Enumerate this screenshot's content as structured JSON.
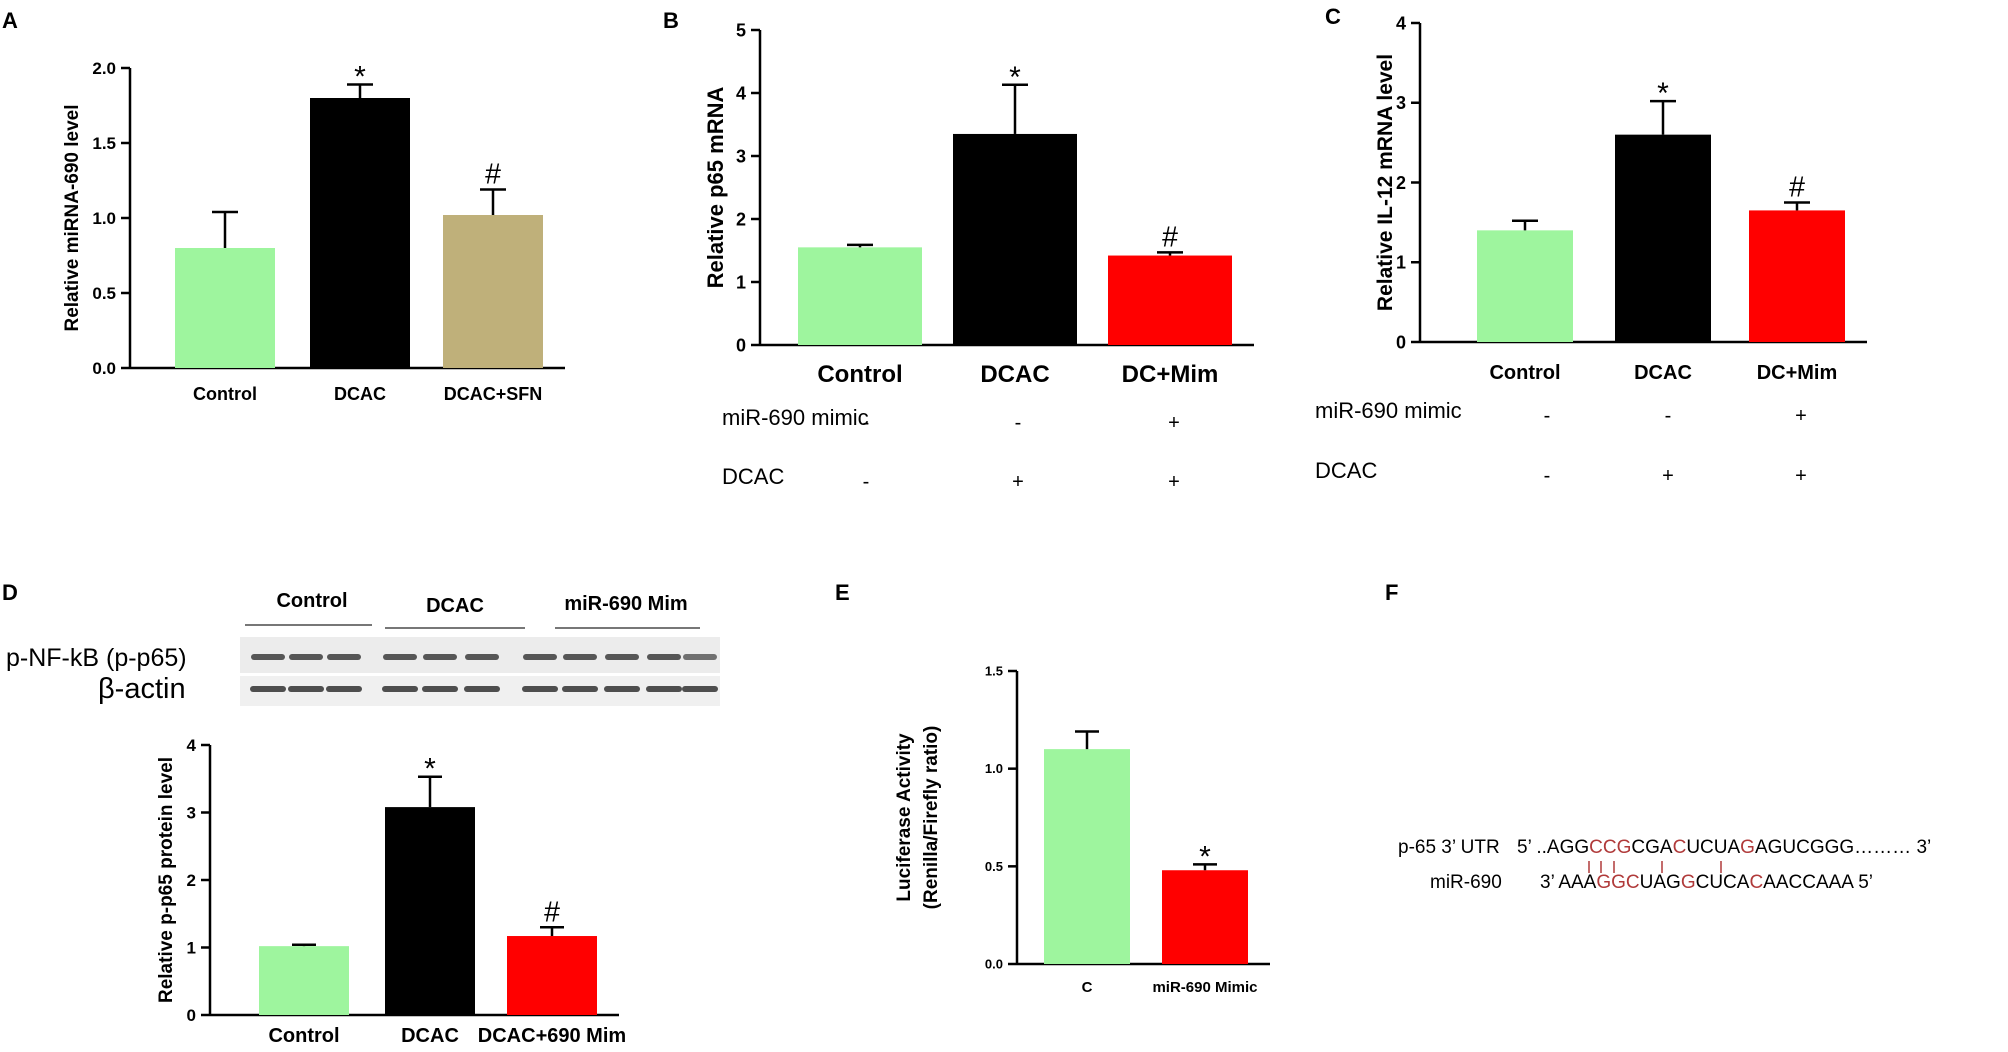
{
  "colors": {
    "control": "#9ef59e",
    "dcac": "#000000",
    "sfn": "#bfb07a",
    "mimic": "#ff0000",
    "seq_highlight": "#b03a3a",
    "blot_band": "#3c3c3c"
  },
  "chart_data": [
    {
      "panel": "A",
      "type": "bar",
      "categories": [
        "Control",
        "DCAC",
        "DCAC+SFN"
      ],
      "values": [
        0.8,
        1.8,
        1.02
      ],
      "errors": [
        0.24,
        0.09,
        0.17
      ],
      "marks": [
        "",
        "*",
        "#"
      ],
      "colors": [
        "control",
        "dcac",
        "sfn"
      ],
      "ylabel": "Relative miRNA-690 level",
      "ylim": [
        0,
        2.0
      ],
      "yticks": [
        "0.0",
        "0.5",
        "1.0",
        "1.5",
        "2.0"
      ],
      "title": ""
    },
    {
      "panel": "B",
      "type": "bar",
      "categories": [
        "Control",
        "DCAC",
        "DC+Mim"
      ],
      "values": [
        1.55,
        3.35,
        1.42
      ],
      "errors": [
        0.04,
        0.78,
        0.05
      ],
      "marks": [
        "",
        "*",
        "#"
      ],
      "colors": [
        "control",
        "dcac",
        "mimic"
      ],
      "ylabel": "Relative p65 mRNA",
      "ylim": [
        0,
        5
      ],
      "yticks": [
        "0",
        "1",
        "2",
        "3",
        "4",
        "5"
      ],
      "treatments": [
        {
          "label": "miR-690 mimic",
          "values": [
            "-",
            "-",
            "+"
          ]
        },
        {
          "label": "DCAC",
          "values": [
            "-",
            "+",
            "+"
          ]
        }
      ],
      "title": ""
    },
    {
      "panel": "C",
      "type": "bar",
      "categories": [
        "Control",
        "DCAC",
        "DC+Mim"
      ],
      "values": [
        1.4,
        2.6,
        1.65
      ],
      "errors": [
        0.12,
        0.42,
        0.1
      ],
      "marks": [
        "",
        "*",
        "#"
      ],
      "colors": [
        "control",
        "dcac",
        "mimic"
      ],
      "ylabel": "Relative IL-12 mRNA level",
      "ylim": [
        0,
        4
      ],
      "yticks": [
        "0",
        "1",
        "2",
        "3",
        "4"
      ],
      "treatments": [
        {
          "label": "miR-690 mimic",
          "values": [
            "-",
            "-",
            "+"
          ]
        },
        {
          "label": "DCAC",
          "values": [
            "-",
            "+",
            "+"
          ]
        }
      ],
      "title": ""
    },
    {
      "panel": "D",
      "type": "bar",
      "categories": [
        "Control",
        "DCAC",
        "DCAC+690 Mim"
      ],
      "values": [
        1.02,
        3.08,
        1.17
      ],
      "errors": [
        0.02,
        0.45,
        0.13
      ],
      "marks": [
        "",
        "*",
        "#"
      ],
      "colors": [
        "control",
        "dcac",
        "mimic"
      ],
      "ylabel": "Relative p-p65 protein level",
      "ylim": [
        0,
        4
      ],
      "yticks": [
        "0",
        "1",
        "2",
        "3",
        "4"
      ],
      "title": ""
    },
    {
      "panel": "E",
      "type": "bar",
      "categories": [
        "C",
        "miR-690  Mimic"
      ],
      "values": [
        1.1,
        0.48
      ],
      "errors": [
        0.09,
        0.03
      ],
      "marks": [
        "",
        "*"
      ],
      "colors": [
        "control",
        "mimic"
      ],
      "ylabel": "Luciferase Activity",
      "ylabel2": "(Renilla/Firefly ratio)",
      "ylim": [
        0,
        1.5
      ],
      "yticks": [
        "0.0",
        "0.5",
        "1.0",
        "1.5"
      ],
      "title": ""
    }
  ],
  "panel_letters": {
    "A": "A",
    "B": "B",
    "C": "C",
    "D": "D",
    "E": "E",
    "F": "F"
  },
  "blot": {
    "groups": [
      "Control",
      "DCAC",
      "miR-690  Mim"
    ],
    "rows": [
      "p-NF-kB (p-p65)",
      "β-actin"
    ]
  },
  "sequence": {
    "utr_label": "p-65 3’ UTR",
    "mir_label": "miR-690",
    "utr_seq": [
      "5’ ..AGG",
      "CCG",
      "CGA",
      "C",
      "UCUA",
      "G",
      "AGUCGGG……… 3’"
    ],
    "mir_seq": [
      "3’ AAA",
      "GGC",
      "UAG",
      "G",
      "CUCA",
      "C",
      "AACCAAA    5’"
    ]
  }
}
